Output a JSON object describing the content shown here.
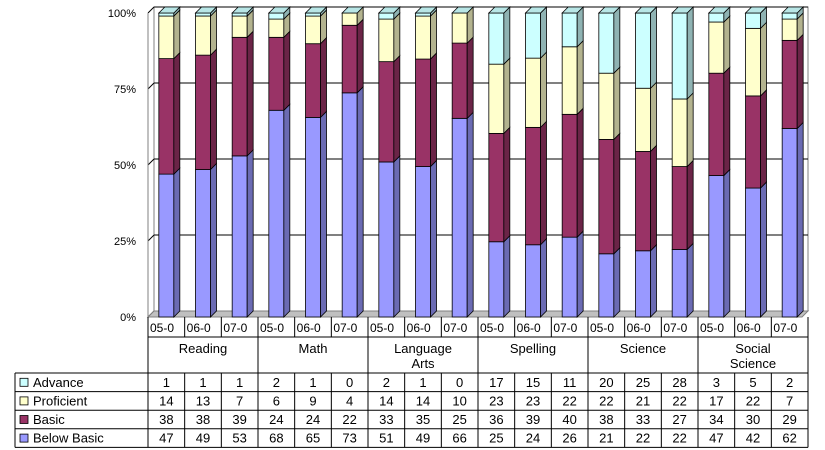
{
  "chart_data": {
    "type": "bar",
    "stacked": "percent",
    "ylim": [
      0,
      100
    ],
    "yticks": [
      "0%",
      "25%",
      "50%",
      "75%",
      "100%"
    ],
    "grid": true,
    "groups": [
      {
        "label": "Reading",
        "categories": [
          "05-0",
          "06-0",
          "07-0"
        ]
      },
      {
        "label": "Math",
        "categories": [
          "05-0",
          "06-0",
          "07-0"
        ]
      },
      {
        "label": "Language Arts",
        "categories": [
          "05-0",
          "06-0",
          "07-0"
        ]
      },
      {
        "label": "Spelling",
        "categories": [
          "05-0",
          "06-0",
          "07-0"
        ]
      },
      {
        "label": "Science",
        "categories": [
          "05-0",
          "06-0",
          "07-0"
        ]
      },
      {
        "label": "Social Science",
        "categories": [
          "05-0",
          "06-0",
          "07-0"
        ]
      }
    ],
    "series": [
      {
        "name": "Advance",
        "color": "#ccffff",
        "values": [
          1,
          1,
          1,
          2,
          1,
          0,
          2,
          1,
          0,
          17,
          15,
          11,
          20,
          25,
          28,
          3,
          5,
          2
        ]
      },
      {
        "name": "Proficient",
        "color": "#ffffcc",
        "values": [
          14,
          13,
          7,
          6,
          9,
          4,
          14,
          14,
          10,
          23,
          23,
          22,
          22,
          21,
          22,
          17,
          22,
          7
        ]
      },
      {
        "name": "Basic",
        "color": "#993366",
        "values": [
          38,
          38,
          39,
          24,
          24,
          22,
          33,
          35,
          25,
          36,
          39,
          40,
          38,
          33,
          27,
          34,
          30,
          29
        ]
      },
      {
        "name": "Below Basic",
        "color": "#9999ff",
        "values": [
          47,
          49,
          53,
          68,
          65,
          73,
          51,
          49,
          66,
          25,
          24,
          26,
          21,
          22,
          22,
          47,
          42,
          62
        ]
      }
    ],
    "legend": "table-left"
  }
}
